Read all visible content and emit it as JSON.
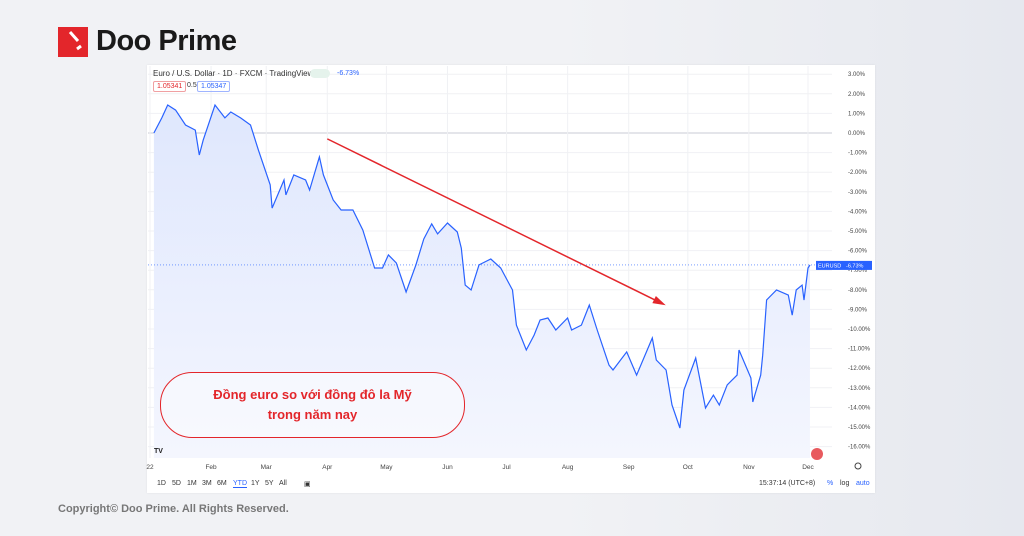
{
  "brand": {
    "name": "Doo Prime",
    "color": "#e3262b"
  },
  "footer": {
    "copyright": "Copyright© Doo Prime. All Rights Reserved."
  },
  "annotation": {
    "line1": "Đồng euro so với đồng đô la Mỹ",
    "line2": "trong năm nay"
  },
  "header": {
    "title": "Euro / U.S. Dollar · 1D · FXCM · TradingView",
    "change": "-6.73%",
    "bid": "1.05341",
    "spread": "0.5",
    "ask": "1.05347"
  },
  "toolbar": {
    "ranges": [
      "1D",
      "5D",
      "1M",
      "3M",
      "6M",
      "YTD",
      "1Y",
      "5Y",
      "All"
    ],
    "active_range": "YTD",
    "time": "15:37:14 (UTC+8)",
    "pct": "%",
    "log": "log",
    "auto": "auto"
  },
  "chart_data": {
    "type": "area",
    "title": "Euro / U.S. Dollar · 1D · FXCM · TradingView",
    "series": [
      {
        "name": "EURUSD",
        "last_label": "-6.73%",
        "color": "#2962ff"
      }
    ],
    "y_ticks": [
      "3.00%",
      "2.00%",
      "1.00%",
      "0.00%",
      "-1.00%",
      "-2.00%",
      "-3.00%",
      "-4.00%",
      "-5.00%",
      "-6.00%",
      "-7.00%",
      "-8.00%",
      "-9.00%",
      "-10.00%",
      "-11.00%",
      "-12.00%",
      "-13.00%",
      "-14.00%",
      "-15.00%",
      "-16.00%"
    ],
    "ylim": [
      -16.5,
      3.3
    ],
    "x_ticks": [
      {
        "label": "22",
        "date": "2022-01-01"
      },
      {
        "label": "Feb",
        "date": "2022-02-01"
      },
      {
        "label": "Mar",
        "date": "2022-03-01"
      },
      {
        "label": "Apr",
        "date": "2022-04-01"
      },
      {
        "label": "May",
        "date": "2022-05-01"
      },
      {
        "label": "Jun",
        "date": "2022-06-01"
      },
      {
        "label": "Jul",
        "date": "2022-07-01"
      },
      {
        "label": "Aug",
        "date": "2022-08-01"
      },
      {
        "label": "Sep",
        "date": "2022-09-01"
      },
      {
        "label": "Oct",
        "date": "2022-10-01"
      },
      {
        "label": "Nov",
        "date": "2022-11-01"
      },
      {
        "label": "Dec",
        "date": "2022-12-01"
      }
    ],
    "points": [
      [
        "2022-01-03",
        0.0
      ],
      [
        "2022-01-07",
        0.77
      ],
      [
        "2022-01-10",
        1.43
      ],
      [
        "2022-01-14",
        1.17
      ],
      [
        "2022-01-19",
        0.41
      ],
      [
        "2022-01-24",
        0.15
      ],
      [
        "2022-01-26",
        -1.12
      ],
      [
        "2022-01-28",
        -0.36
      ],
      [
        "2022-02-03",
        1.43
      ],
      [
        "2022-02-08",
        0.77
      ],
      [
        "2022-02-11",
        1.07
      ],
      [
        "2022-02-16",
        0.77
      ],
      [
        "2022-02-21",
        0.41
      ],
      [
        "2022-02-25",
        -0.87
      ],
      [
        "2022-03-03",
        -2.65
      ],
      [
        "2022-03-04",
        -3.83
      ],
      [
        "2022-03-10",
        -2.4
      ],
      [
        "2022-03-11",
        -3.16
      ],
      [
        "2022-03-15",
        -2.14
      ],
      [
        "2022-03-21",
        -2.4
      ],
      [
        "2022-03-23",
        -2.91
      ],
      [
        "2022-03-28",
        -1.22
      ],
      [
        "2022-03-30",
        -2.14
      ],
      [
        "2022-04-04",
        -3.42
      ],
      [
        "2022-04-08",
        -3.93
      ],
      [
        "2022-04-14",
        -3.93
      ],
      [
        "2022-04-19",
        -4.95
      ],
      [
        "2022-04-25",
        -6.89
      ],
      [
        "2022-04-29",
        -6.89
      ],
      [
        "2022-05-02",
        -6.22
      ],
      [
        "2022-05-06",
        -6.63
      ],
      [
        "2022-05-11",
        -8.11
      ],
      [
        "2022-05-16",
        -6.73
      ],
      [
        "2022-05-20",
        -5.41
      ],
      [
        "2022-05-24",
        -4.64
      ],
      [
        "2022-05-27",
        -5.15
      ],
      [
        "2022-06-01",
        -4.59
      ],
      [
        "2022-06-06",
        -5.05
      ],
      [
        "2022-06-08",
        -5.87
      ],
      [
        "2022-06-10",
        -7.76
      ],
      [
        "2022-06-13",
        -8.01
      ],
      [
        "2022-06-17",
        -6.73
      ],
      [
        "2022-06-23",
        -6.43
      ],
      [
        "2022-06-28",
        -6.89
      ],
      [
        "2022-07-04",
        -8.01
      ],
      [
        "2022-07-06",
        -9.8
      ],
      [
        "2022-07-11",
        -11.07
      ],
      [
        "2022-07-15",
        -10.31
      ],
      [
        "2022-07-18",
        -9.54
      ],
      [
        "2022-07-22",
        -9.44
      ],
      [
        "2022-07-26",
        -10.05
      ],
      [
        "2022-08-01",
        -9.44
      ],
      [
        "2022-08-03",
        -10.05
      ],
      [
        "2022-08-08",
        -9.8
      ],
      [
        "2022-08-12",
        -8.78
      ],
      [
        "2022-08-16",
        -10.05
      ],
      [
        "2022-08-22",
        -11.84
      ],
      [
        "2022-08-24",
        -12.09
      ],
      [
        "2022-08-31",
        -11.17
      ],
      [
        "2022-09-05",
        -12.35
      ],
      [
        "2022-09-13",
        -10.46
      ],
      [
        "2022-09-15",
        -11.58
      ],
      [
        "2022-09-20",
        -12.09
      ],
      [
        "2022-09-23",
        -13.88
      ],
      [
        "2022-09-27",
        -15.05
      ],
      [
        "2022-09-29",
        -13.11
      ],
      [
        "2022-10-05",
        -11.48
      ],
      [
        "2022-10-10",
        -14.03
      ],
      [
        "2022-10-14",
        -13.37
      ],
      [
        "2022-10-17",
        -13.88
      ],
      [
        "2022-10-21",
        -12.85
      ],
      [
        "2022-10-26",
        -12.35
      ],
      [
        "2022-10-27",
        -11.07
      ],
      [
        "2022-11-02",
        -12.5
      ],
      [
        "2022-11-03",
        -13.72
      ],
      [
        "2022-11-07",
        -12.35
      ],
      [
        "2022-11-08",
        -11.33
      ],
      [
        "2022-11-10",
        -8.52
      ],
      [
        "2022-11-15",
        -8.01
      ],
      [
        "2022-11-21",
        -8.27
      ],
      [
        "2022-11-23",
        -9.29
      ],
      [
        "2022-11-25",
        -8.01
      ],
      [
        "2022-11-28",
        -7.76
      ],
      [
        "2022-11-29",
        -8.52
      ],
      [
        "2022-12-01",
        -6.89
      ],
      [
        "2022-12-02",
        -6.73
      ]
    ],
    "trend_arrow": {
      "color": "#e3262b",
      "from": [
        "2022-04-01",
        -0.3
      ],
      "to": [
        "2022-09-18",
        -8.7
      ]
    },
    "grid": true,
    "fill_color": "#dfe7fd"
  }
}
